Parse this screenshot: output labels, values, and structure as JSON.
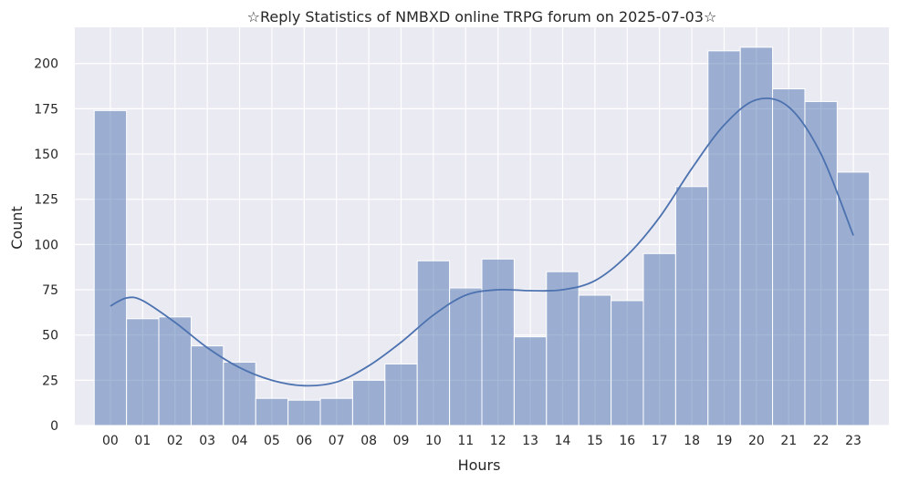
{
  "chart_data": {
    "type": "bar",
    "title": "☆Reply Statistics of NMBXD online TRPG forum on 2025-07-03☆",
    "xlabel": "Hours",
    "ylabel": "Count",
    "categories": [
      "00",
      "01",
      "02",
      "03",
      "04",
      "05",
      "06",
      "07",
      "08",
      "09",
      "10",
      "11",
      "12",
      "13",
      "14",
      "15",
      "16",
      "17",
      "18",
      "19",
      "20",
      "21",
      "22",
      "23"
    ],
    "values": [
      174,
      59,
      60,
      44,
      35,
      15,
      14,
      15,
      25,
      34,
      91,
      76,
      92,
      49,
      85,
      72,
      69,
      95,
      132,
      207,
      209,
      186,
      179,
      140
    ],
    "kde": [
      [
        0,
        66
      ],
      [
        0.5,
        70.5
      ],
      [
        1,
        69
      ],
      [
        2,
        57
      ],
      [
        3,
        43
      ],
      [
        4,
        32
      ],
      [
        5,
        25
      ],
      [
        6,
        22
      ],
      [
        7,
        24
      ],
      [
        8,
        33
      ],
      [
        9,
        46
      ],
      [
        10,
        61
      ],
      [
        11,
        72
      ],
      [
        12,
        75
      ],
      [
        13,
        74.5
      ],
      [
        14,
        75
      ],
      [
        15,
        80
      ],
      [
        16,
        94
      ],
      [
        17,
        115
      ],
      [
        18,
        142
      ],
      [
        19,
        166
      ],
      [
        20,
        180
      ],
      [
        21,
        176
      ],
      [
        22,
        150
      ],
      [
        23,
        105
      ]
    ],
    "yticks": [
      0,
      25,
      50,
      75,
      100,
      125,
      150,
      175,
      200
    ],
    "ylim": [
      0,
      220
    ],
    "xlim": [
      -1.1,
      24.1
    ],
    "grid": true,
    "colors": {
      "background": "#EAEAF2",
      "bar_fill": "#4C72B0",
      "bar_opacity": 0.5,
      "bar_edge": "#ffffff",
      "line": "#4C72B0",
      "grid": "#ffffff"
    }
  }
}
